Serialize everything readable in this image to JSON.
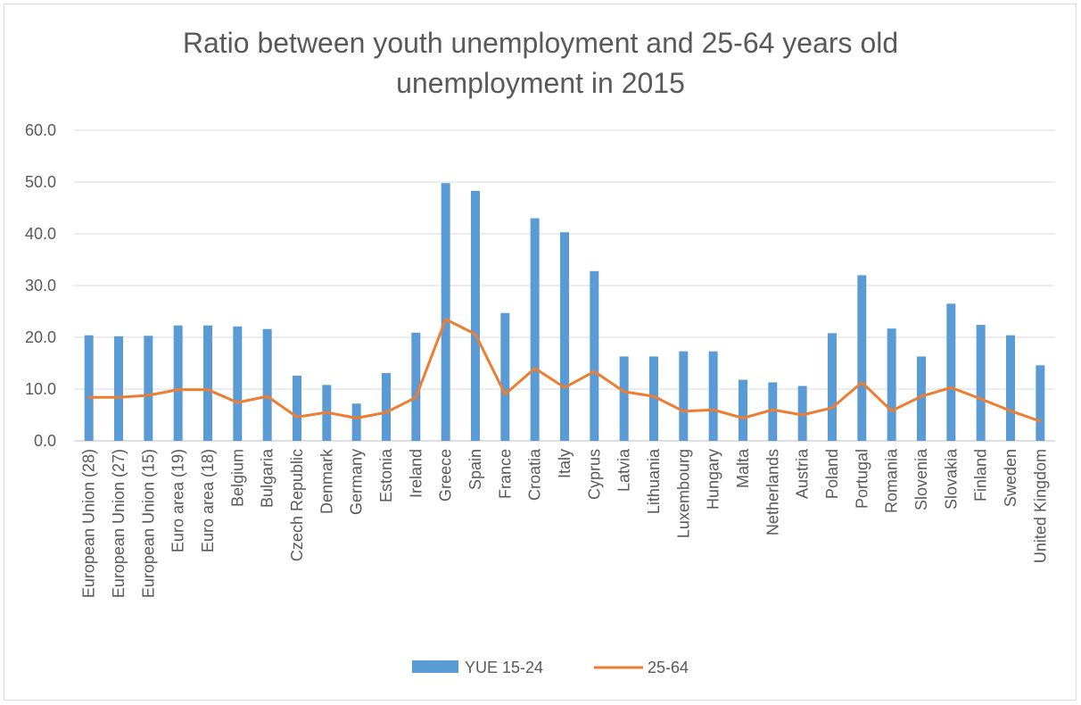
{
  "chart_data": {
    "type": "bar",
    "title_line1": "Ratio between youth unemployment and 25-64 years old",
    "title_line2": "unemployment in 2015",
    "xlabel": "",
    "ylabel": "",
    "ylim": [
      0,
      60
    ],
    "yticks": [
      "0.0",
      "10.0",
      "20.0",
      "30.0",
      "40.0",
      "50.0",
      "60.0"
    ],
    "grid": true,
    "legend_position": "bottom",
    "categories": [
      "European Union (28)",
      "European Union (27)",
      "European Union (15)",
      "Euro area (19)",
      "Euro area (18)",
      "Belgium",
      "Bulgaria",
      "Czech Republic",
      "Denmark",
      "Germany",
      "Estonia",
      "Ireland",
      "Greece",
      "Spain",
      "France",
      "Croatia",
      "Italy",
      "Cyprus",
      "Latvia",
      "Lithuania",
      "Luxembourg",
      "Hungary",
      "Malta",
      "Netherlands",
      "Austria",
      "Poland",
      "Portugal",
      "Romania",
      "Slovenia",
      "Slovakia",
      "Finland",
      "Sweden",
      "United Kingdom"
    ],
    "series": [
      {
        "name": "YUE 15-24",
        "kind": "bar",
        "color": "#5b9bd5",
        "values": [
          20.4,
          20.2,
          20.3,
          22.3,
          22.3,
          22.1,
          21.6,
          12.6,
          10.8,
          7.2,
          13.1,
          20.9,
          49.8,
          48.3,
          24.7,
          43.0,
          40.3,
          32.8,
          16.3,
          16.3,
          17.3,
          17.3,
          11.8,
          11.3,
          10.6,
          20.8,
          32.0,
          21.7,
          16.3,
          26.5,
          22.4,
          20.4,
          14.6
        ]
      },
      {
        "name": "25-64",
        "kind": "line",
        "color": "#ed7d31",
        "values": [
          8.4,
          8.4,
          8.8,
          9.9,
          9.9,
          7.4,
          8.6,
          4.6,
          5.5,
          4.4,
          5.5,
          8.4,
          23.5,
          20.6,
          9.0,
          14.0,
          10.3,
          13.4,
          9.5,
          8.6,
          5.7,
          6.0,
          4.4,
          6.0,
          5.0,
          6.4,
          11.3,
          5.8,
          8.6,
          10.3,
          8.1,
          5.8,
          3.8
        ]
      }
    ]
  }
}
